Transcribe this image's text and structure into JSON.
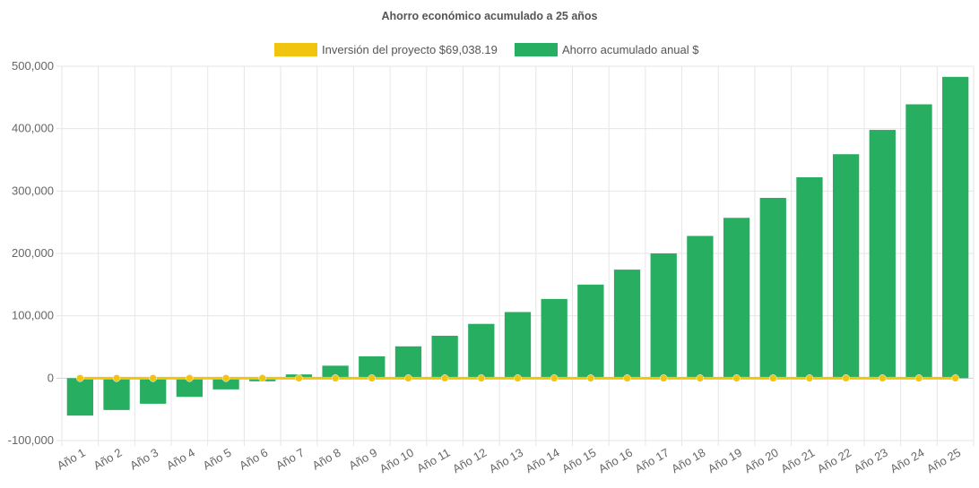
{
  "chart_data": {
    "type": "bar",
    "title": "Ahorro económico acumulado a 25 años",
    "categories": [
      "Año 1",
      "Año 2",
      "Año 3",
      "Año 4",
      "Año 5",
      "Año 6",
      "Año 7",
      "Año 8",
      "Año 9",
      "Año 10",
      "Año 11",
      "Año 12",
      "Año 13",
      "Año 14",
      "Año 15",
      "Año 16",
      "Año 17",
      "Año 18",
      "Año 19",
      "Año 20",
      "Año 21",
      "Año 22",
      "Año 23",
      "Año 24",
      "Año 25"
    ],
    "series": [
      {
        "name": "Inversión del proyecto $69,038.19",
        "type": "line",
        "color": "#f1c40f",
        "values": [
          0,
          0,
          0,
          0,
          0,
          0,
          0,
          0,
          0,
          0,
          0,
          0,
          0,
          0,
          0,
          0,
          0,
          0,
          0,
          0,
          0,
          0,
          0,
          0,
          0
        ]
      },
      {
        "name": "Ahorro acumulado anual $",
        "type": "bar",
        "color": "#27ae60",
        "values": [
          -60000,
          -51000,
          -41000,
          -30000,
          -18000,
          -5000,
          6000,
          20000,
          35000,
          51000,
          68000,
          87000,
          106000,
          127000,
          150000,
          174000,
          200000,
          228000,
          257000,
          289000,
          322000,
          359000,
          398000,
          439000,
          483000
        ]
      }
    ],
    "yticks": [
      "500,000",
      "400,000",
      "300,000",
      "200,000",
      "100,000",
      "0",
      "-100,000"
    ],
    "ylim": [
      -100000,
      500000
    ],
    "grid": true,
    "legend": "top"
  }
}
